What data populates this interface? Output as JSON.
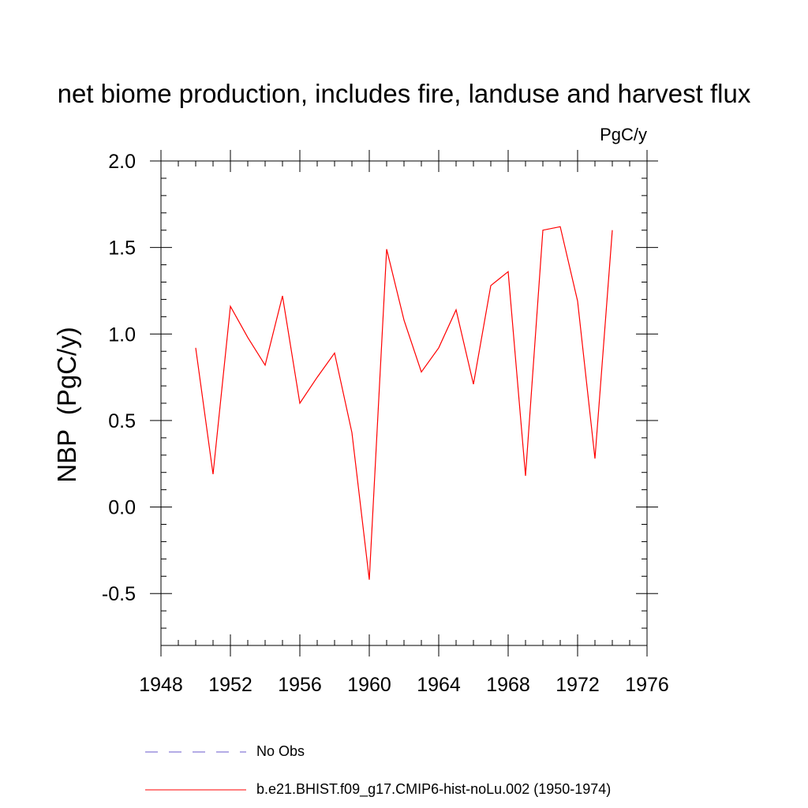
{
  "chart_data": {
    "type": "line",
    "title": "net biome production, includes fire, landuse and harvest flux",
    "units_label": "PgC/y",
    "ylabel": "NBP  (PgC/y)",
    "xlabel": "",
    "xlim": [
      1948,
      1976
    ],
    "ylim": [
      -0.8,
      2.0
    ],
    "x_ticks": [
      1948,
      1952,
      1956,
      1960,
      1964,
      1968,
      1972,
      1976
    ],
    "y_ticks": [
      -0.5,
      0.0,
      0.5,
      1.0,
      1.5,
      2.0
    ],
    "y_tick_labels": [
      "-0.5",
      "0.0",
      "0.5",
      "1.0",
      "1.5",
      "2.0"
    ],
    "grid": false,
    "legend_position": "bottom",
    "series": [
      {
        "name": "No Obs",
        "color": "#6a5acd",
        "style": "dashed",
        "x": [],
        "values": []
      },
      {
        "name": "b.e21.BHIST.f09_g17.CMIP6-hist-noLu.002 (1950-1974)",
        "color": "#ff0000",
        "style": "solid",
        "x": [
          1950,
          1951,
          1952,
          1953,
          1954,
          1955,
          1956,
          1957,
          1958,
          1959,
          1960,
          1961,
          1962,
          1963,
          1964,
          1965,
          1966,
          1967,
          1968,
          1969,
          1970,
          1971,
          1972,
          1973,
          1974
        ],
        "values": [
          0.92,
          0.19,
          1.16,
          0.98,
          0.82,
          1.22,
          0.6,
          0.75,
          0.89,
          0.43,
          -0.42,
          1.49,
          1.08,
          0.78,
          0.92,
          1.14,
          0.71,
          1.28,
          1.36,
          0.18,
          1.6,
          1.62,
          1.19,
          0.28,
          1.6
        ]
      }
    ]
  }
}
